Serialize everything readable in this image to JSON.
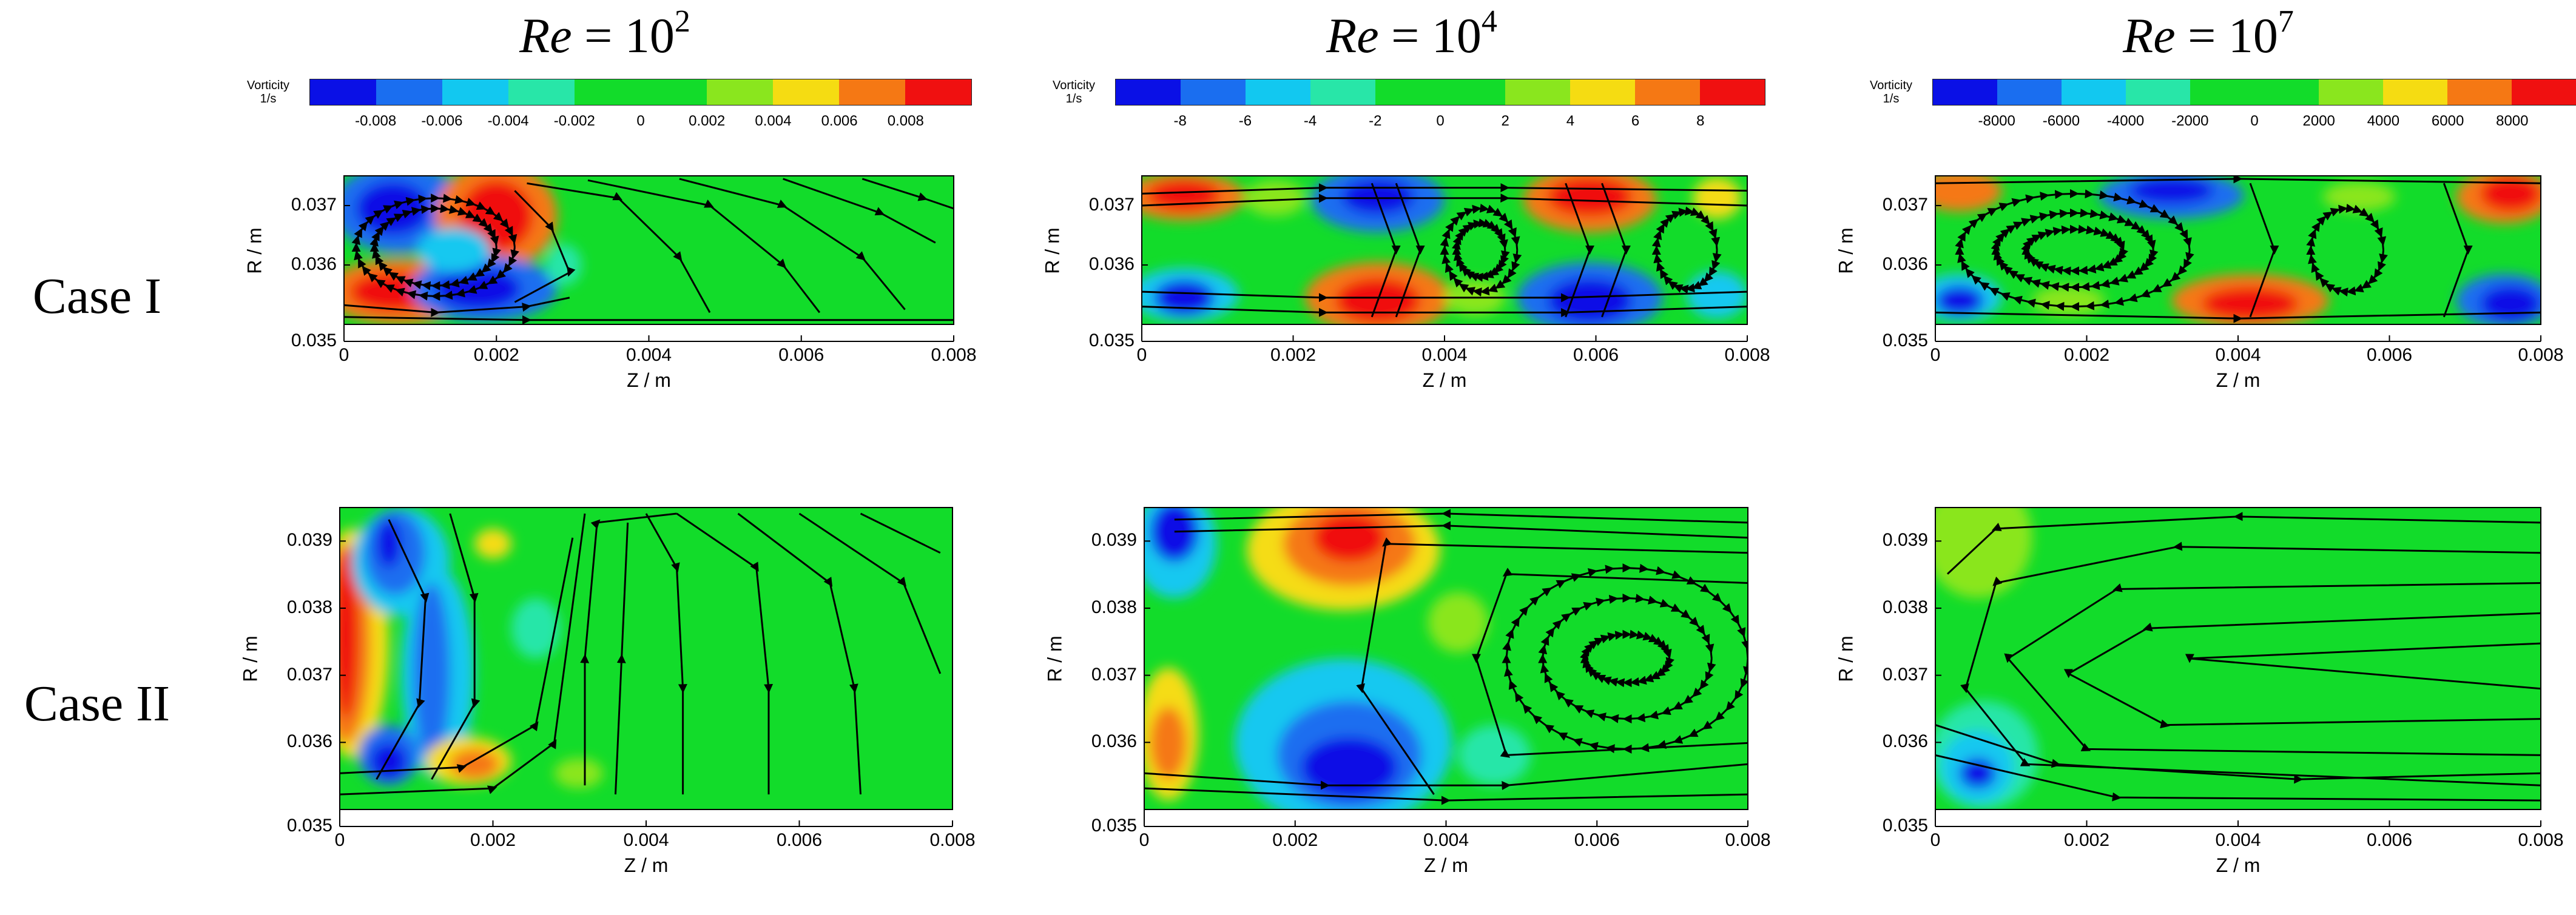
{
  "columns": [
    {
      "re_prefix": "Re",
      "re_eq": " = 10",
      "re_exp": "2"
    },
    {
      "re_prefix": "Re",
      "re_eq": " = 10",
      "re_exp": "4"
    },
    {
      "re_prefix": "Re",
      "re_eq": " = 10",
      "re_exp": "7"
    }
  ],
  "rows": [
    {
      "label": "Case I"
    },
    {
      "label": "Case II"
    }
  ],
  "colorbar": {
    "title_line1": "Vorticity",
    "title_line2": "1/s",
    "colors": [
      "#0a10e6",
      "#1a6ef0",
      "#12c8f0",
      "#28e6a8",
      "#12dc2a",
      "#12dc2a",
      "#8ae61e",
      "#f5dc12",
      "#f57814",
      "#f01010"
    ],
    "tick_sets": [
      [
        "-0.008",
        "-0.006",
        "-0.004",
        "-0.002",
        "0",
        "0.002",
        "0.004",
        "0.006",
        "0.008"
      ],
      [
        "-8",
        "-6",
        "-4",
        "-2",
        "0",
        "2",
        "4",
        "6",
        "8"
      ],
      [
        "-8000",
        "-6000",
        "-4000",
        "-2000",
        "0",
        "2000",
        "4000",
        "6000",
        "8000"
      ]
    ]
  },
  "chart_data": [
    {
      "type": "heatmap",
      "case": "Case I",
      "column": "Re = 10^2",
      "xlabel": "Z / m",
      "ylabel": "R / m",
      "xlim": [
        0,
        0.008
      ],
      "ylim": [
        0.035,
        0.0375
      ],
      "xticks": [
        "0",
        "0.002",
        "0.004",
        "0.006",
        "0.008"
      ],
      "yticks": [
        "0.035",
        "0.036",
        "0.037"
      ],
      "field": "vorticity",
      "streamlines": true
    },
    {
      "type": "heatmap",
      "case": "Case I",
      "column": "Re = 10^4",
      "xlabel": "Z / m",
      "ylabel": "R / m",
      "xlim": [
        0,
        0.008
      ],
      "ylim": [
        0.035,
        0.0375
      ],
      "xticks": [
        "0",
        "0.002",
        "0.004",
        "0.006",
        "0.008"
      ],
      "yticks": [
        "0.035",
        "0.036",
        "0.037"
      ],
      "field": "vorticity",
      "streamlines": true
    },
    {
      "type": "heatmap",
      "case": "Case I",
      "column": "Re = 10^7",
      "xlabel": "Z / m",
      "ylabel": "R / m",
      "xlim": [
        0,
        0.008
      ],
      "ylim": [
        0.035,
        0.0375
      ],
      "xticks": [
        "0",
        "0.002",
        "0.004",
        "0.006",
        "0.008"
      ],
      "yticks": [
        "0.035",
        "0.036",
        "0.037"
      ],
      "field": "vorticity",
      "streamlines": true
    },
    {
      "type": "heatmap",
      "case": "Case II",
      "column": "Re = 10^2",
      "xlabel": "Z / m",
      "ylabel": "R / m",
      "xlim": [
        0,
        0.008
      ],
      "ylim": [
        0.035,
        0.0395
      ],
      "xticks": [
        "0",
        "0.002",
        "0.004",
        "0.006",
        "0.008"
      ],
      "yticks": [
        "0.035",
        "0.036",
        "0.037",
        "0.038",
        "0.039"
      ],
      "field": "vorticity",
      "streamlines": true
    },
    {
      "type": "heatmap",
      "case": "Case II",
      "column": "Re = 10^4",
      "xlabel": "Z / m",
      "ylabel": "R / m",
      "xlim": [
        0,
        0.008
      ],
      "ylim": [
        0.035,
        0.0395
      ],
      "xticks": [
        "0",
        "0.002",
        "0.004",
        "0.006",
        "0.008"
      ],
      "yticks": [
        "0.035",
        "0.036",
        "0.037",
        "0.038",
        "0.039"
      ],
      "field": "vorticity",
      "streamlines": true
    },
    {
      "type": "heatmap",
      "case": "Case II",
      "column": "Re = 10^7",
      "xlabel": "Z / m",
      "ylabel": "R / m",
      "xlim": [
        0,
        0.008
      ],
      "ylim": [
        0.035,
        0.0395
      ],
      "xticks": [
        "0",
        "0.002",
        "0.004",
        "0.006",
        "0.008"
      ],
      "yticks": [
        "0.035",
        "0.036",
        "0.037",
        "0.038",
        "0.039"
      ],
      "field": "vorticity",
      "streamlines": true
    }
  ]
}
